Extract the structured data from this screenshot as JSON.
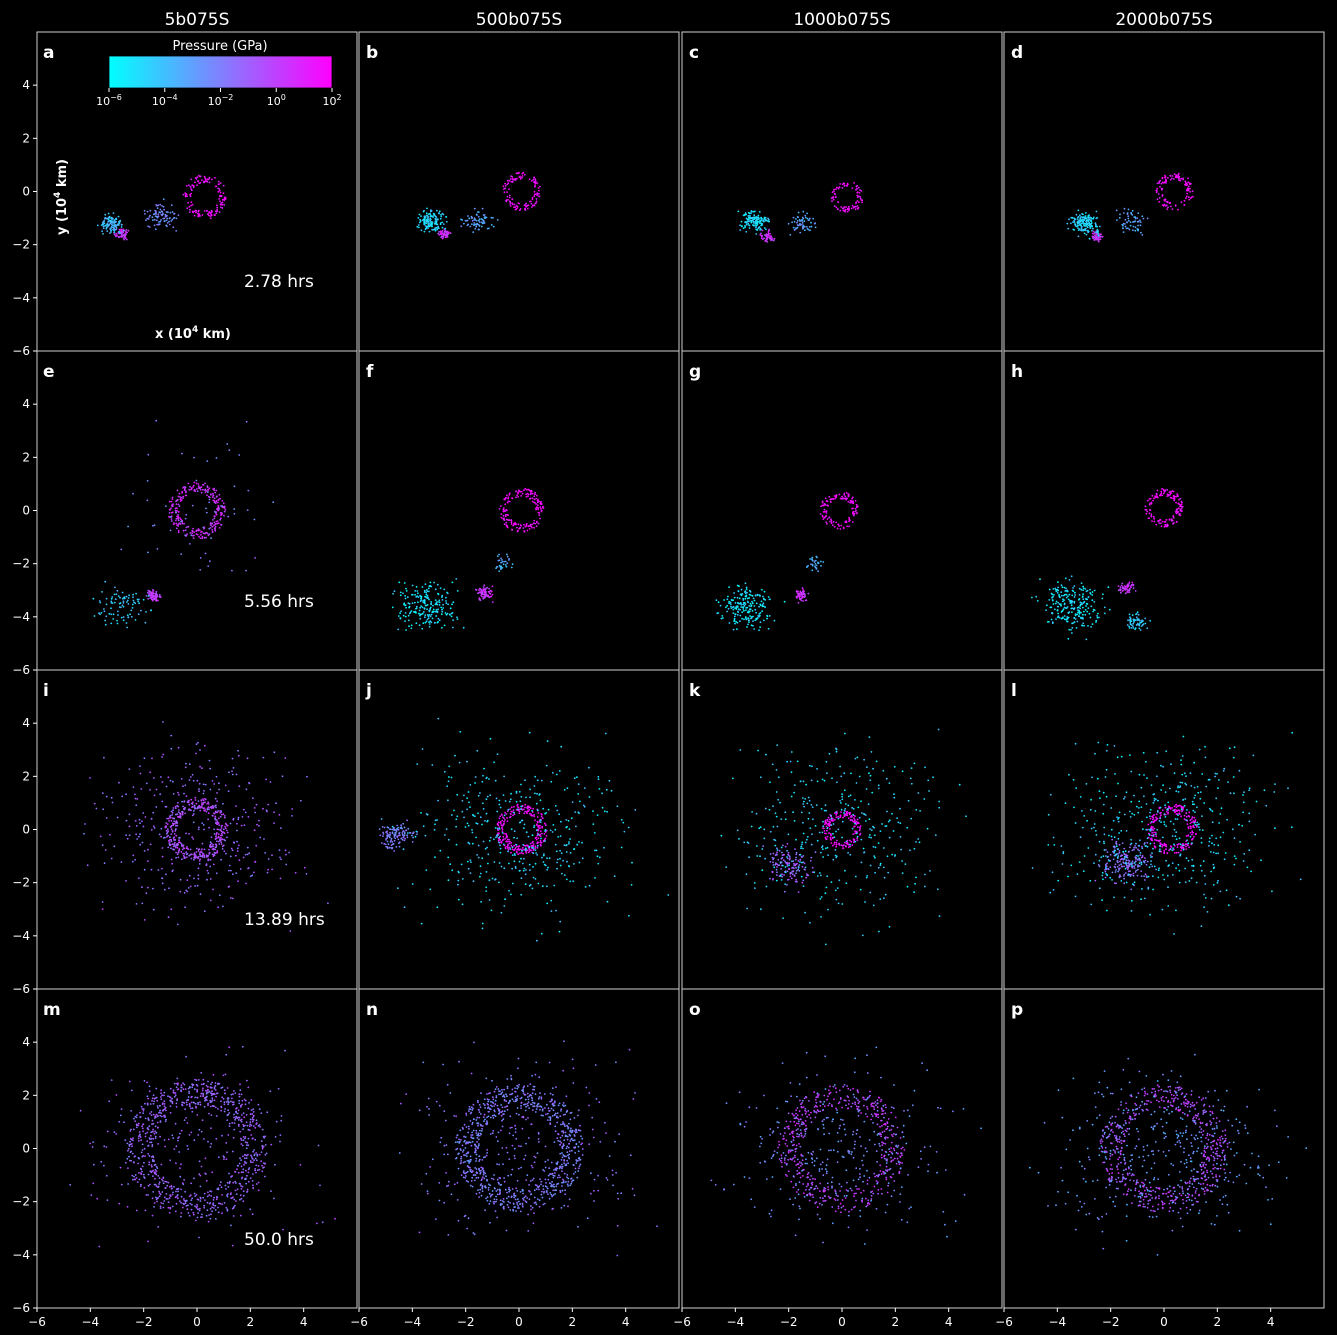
{
  "columns": [
    "5b075S",
    "500b075S",
    "1000b075S",
    "2000b075S"
  ],
  "panel_labels": [
    [
      "a",
      "b",
      "c",
      "d"
    ],
    [
      "e",
      "f",
      "g",
      "h"
    ],
    [
      "i",
      "j",
      "k",
      "l"
    ],
    [
      "m",
      "n",
      "o",
      "p"
    ]
  ],
  "times": [
    "2.78 hrs",
    "5.56 hrs",
    "13.89 hrs",
    "50.0 hrs"
  ],
  "axes": {
    "xlabel": "x (10",
    "xlabel_sup": "4",
    "xlabel_tail": " km)",
    "ylabel": "y (10",
    "ylabel_sup": "4",
    "ylabel_tail": " km)",
    "xlim": [
      -6,
      6
    ],
    "ylim": [
      -6,
      6
    ],
    "xticks": [
      "−6",
      "−4",
      "−2",
      "0",
      "2",
      "4"
    ],
    "yticks": [
      "−6",
      "−4",
      "−2",
      "0",
      "2",
      "4"
    ]
  },
  "colorbar": {
    "title": "Pressure (GPa)",
    "scale": "log",
    "min_color": "#00ffff",
    "max_color": "#ff00ff",
    "ticks": [
      {
        "base": "10",
        "exp": "−6"
      },
      {
        "base": "10",
        "exp": "−4"
      },
      {
        "base": "10",
        "exp": "−2"
      },
      {
        "base": "10",
        "exp": "0"
      },
      {
        "base": "10",
        "exp": "2"
      }
    ]
  },
  "chart_data": {
    "type": "scatter",
    "title": "",
    "color_scale": "log pressure (GPa), cyan to magenta",
    "grid": false,
    "xlim": [
      -6,
      6
    ],
    "ylim": [
      -6,
      6
    ],
    "panels": [
      {
        "label": "a",
        "row": 0,
        "col": 0,
        "clusters": [
          {
            "cx": 0.3,
            "cy": -0.2,
            "r": 0.7,
            "ring": true,
            "n": 140,
            "c": 0.95
          },
          {
            "cx": -2.8,
            "cy": -1.6,
            "r": 0.35,
            "n": 60,
            "c": 0.8
          },
          {
            "cx": -3.2,
            "cy": -1.2,
            "r": 0.6,
            "n": 120,
            "c": 0.25
          },
          {
            "cx": -1.4,
            "cy": -0.9,
            "r": 0.9,
            "n": 90,
            "c": 0.45
          }
        ]
      },
      {
        "label": "b",
        "row": 0,
        "col": 1,
        "clusters": [
          {
            "cx": 0.1,
            "cy": 0.0,
            "r": 0.6,
            "ring": true,
            "n": 120,
            "c": 0.97
          },
          {
            "cx": -2.8,
            "cy": -1.6,
            "r": 0.35,
            "n": 50,
            "c": 0.8
          },
          {
            "cx": -3.3,
            "cy": -1.1,
            "r": 0.7,
            "n": 140,
            "c": 0.15
          },
          {
            "cx": -1.5,
            "cy": -1.1,
            "r": 0.8,
            "n": 70,
            "c": 0.35
          }
        ]
      },
      {
        "label": "c",
        "row": 0,
        "col": 2,
        "clusters": [
          {
            "cx": 0.2,
            "cy": -0.2,
            "r": 0.5,
            "ring": true,
            "n": 90,
            "c": 0.97
          },
          {
            "cx": -2.8,
            "cy": -1.7,
            "r": 0.4,
            "n": 50,
            "c": 0.8
          },
          {
            "cx": -3.3,
            "cy": -1.1,
            "r": 0.7,
            "n": 140,
            "c": 0.15
          },
          {
            "cx": -1.5,
            "cy": -1.2,
            "r": 0.7,
            "n": 60,
            "c": 0.35
          }
        ]
      },
      {
        "label": "d",
        "row": 0,
        "col": 3,
        "clusters": [
          {
            "cx": 0.4,
            "cy": 0.0,
            "r": 0.6,
            "ring": true,
            "n": 120,
            "c": 0.97
          },
          {
            "cx": -2.5,
            "cy": -1.7,
            "r": 0.35,
            "n": 50,
            "c": 0.8
          },
          {
            "cx": -3.0,
            "cy": -1.2,
            "r": 0.8,
            "n": 160,
            "c": 0.15
          },
          {
            "cx": -1.2,
            "cy": -1.1,
            "r": 0.8,
            "n": 60,
            "c": 0.35
          }
        ]
      },
      {
        "label": "e",
        "row": 1,
        "col": 0,
        "clusters": [
          {
            "cx": 0.0,
            "cy": 0.0,
            "r": 0.9,
            "ring": true,
            "n": 260,
            "c": 0.8
          },
          {
            "cx": -1.6,
            "cy": -3.2,
            "r": 0.4,
            "n": 80,
            "c": 0.75
          },
          {
            "cx": -2.8,
            "cy": -3.6,
            "r": 1.4,
            "n": 90,
            "c": 0.2
          },
          {
            "cx": 0.0,
            "cy": 0.0,
            "r": 4.8,
            "n": 60,
            "c": 0.5
          }
        ]
      },
      {
        "label": "f",
        "row": 1,
        "col": 1,
        "clusters": [
          {
            "cx": 0.1,
            "cy": 0.0,
            "r": 0.7,
            "ring": true,
            "n": 170,
            "c": 0.97
          },
          {
            "cx": -1.3,
            "cy": -3.1,
            "r": 0.5,
            "n": 80,
            "c": 0.8
          },
          {
            "cx": -3.5,
            "cy": -3.6,
            "r": 1.6,
            "n": 220,
            "c": 0.1
          },
          {
            "cx": -0.6,
            "cy": -2.0,
            "r": 0.5,
            "n": 30,
            "c": 0.3
          }
        ]
      },
      {
        "label": "g",
        "row": 1,
        "col": 2,
        "clusters": [
          {
            "cx": -0.1,
            "cy": 0.0,
            "r": 0.6,
            "ring": true,
            "n": 130,
            "c": 0.97
          },
          {
            "cx": -1.5,
            "cy": -3.2,
            "r": 0.4,
            "n": 60,
            "c": 0.8
          },
          {
            "cx": -3.6,
            "cy": -3.6,
            "r": 1.5,
            "n": 200,
            "c": 0.1
          },
          {
            "cx": -1.0,
            "cy": -2.0,
            "r": 0.5,
            "n": 30,
            "c": 0.3
          }
        ]
      },
      {
        "label": "h",
        "row": 1,
        "col": 3,
        "clusters": [
          {
            "cx": 0.0,
            "cy": 0.1,
            "r": 0.6,
            "ring": true,
            "n": 150,
            "c": 0.97
          },
          {
            "cx": -1.4,
            "cy": -2.9,
            "r": 0.4,
            "n": 60,
            "c": 0.8
          },
          {
            "cx": -3.4,
            "cy": -3.6,
            "r": 1.7,
            "n": 240,
            "c": 0.1
          },
          {
            "cx": -1.0,
            "cy": -4.2,
            "r": 0.6,
            "n": 60,
            "c": 0.2
          }
        ]
      },
      {
        "label": "i",
        "row": 2,
        "col": 0,
        "clusters": [
          {
            "cx": 0.0,
            "cy": 0.0,
            "r": 1.0,
            "ring": true,
            "n": 320,
            "c": 0.7
          },
          {
            "cx": 0.0,
            "cy": 0.0,
            "r": 5.5,
            "n": 420,
            "c": 0.6
          }
        ]
      },
      {
        "label": "j",
        "row": 2,
        "col": 1,
        "clusters": [
          {
            "cx": 0.1,
            "cy": 0.0,
            "r": 0.8,
            "ring": true,
            "n": 260,
            "c": 0.97
          },
          {
            "cx": -4.6,
            "cy": -0.2,
            "r": 0.9,
            "n": 120,
            "c": 0.5
          },
          {
            "cx": 0.0,
            "cy": 0.0,
            "r": 5.8,
            "n": 420,
            "c": 0.15
          }
        ]
      },
      {
        "label": "k",
        "row": 2,
        "col": 2,
        "clusters": [
          {
            "cx": 0.0,
            "cy": 0.0,
            "r": 0.6,
            "ring": true,
            "n": 160,
            "c": 0.97
          },
          {
            "cx": -2.0,
            "cy": -1.4,
            "r": 1.3,
            "n": 140,
            "c": 0.6
          },
          {
            "cx": 0.0,
            "cy": 0.0,
            "r": 5.8,
            "n": 360,
            "c": 0.15
          }
        ]
      },
      {
        "label": "l",
        "row": 2,
        "col": 3,
        "clusters": [
          {
            "cx": 0.3,
            "cy": 0.0,
            "r": 0.8,
            "ring": true,
            "n": 220,
            "c": 0.97
          },
          {
            "cx": -1.5,
            "cy": -1.2,
            "r": 1.4,
            "n": 200,
            "c": 0.55
          },
          {
            "cx": 0.0,
            "cy": 0.0,
            "r": 5.8,
            "n": 460,
            "c": 0.15
          }
        ]
      },
      {
        "label": "m",
        "row": 3,
        "col": 0,
        "clusters": [
          {
            "cx": 0.0,
            "cy": 0.0,
            "r": 2.2,
            "ring": true,
            "n": 700,
            "c": 0.6
          },
          {
            "cx": 0.0,
            "cy": 0.0,
            "r": 5.8,
            "n": 300,
            "c": 0.6
          }
        ]
      },
      {
        "label": "n",
        "row": 3,
        "col": 1,
        "clusters": [
          {
            "cx": 0.0,
            "cy": 0.0,
            "r": 2.0,
            "ring": true,
            "n": 700,
            "c": 0.5
          },
          {
            "cx": 0.0,
            "cy": 0.0,
            "r": 5.8,
            "n": 350,
            "c": 0.55
          }
        ]
      },
      {
        "label": "o",
        "row": 3,
        "col": 2,
        "clusters": [
          {
            "cx": 0.0,
            "cy": 0.0,
            "r": 2.0,
            "ring": true,
            "n": 450,
            "c": 0.75
          },
          {
            "cx": 0.0,
            "cy": 0.0,
            "r": 5.8,
            "n": 350,
            "c": 0.45
          }
        ]
      },
      {
        "label": "p",
        "row": 3,
        "col": 3,
        "clusters": [
          {
            "cx": 0.0,
            "cy": 0.0,
            "r": 2.0,
            "ring": true,
            "n": 550,
            "c": 0.7
          },
          {
            "cx": 0.0,
            "cy": 0.0,
            "r": 5.8,
            "n": 400,
            "c": 0.4
          }
        ]
      }
    ]
  }
}
